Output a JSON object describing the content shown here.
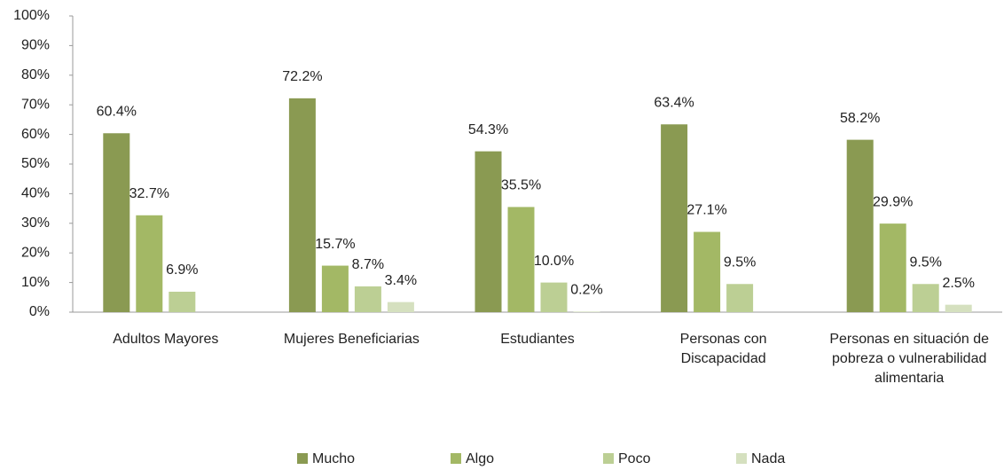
{
  "chart_data": {
    "type": "bar",
    "categories": [
      "Adultos Mayores",
      "Mujeres Beneficiarias",
      "Estudiantes",
      "Personas con\nDiscapacidad",
      "Personas en situación de\npobreza o vulnerabilidad\nalimentaria"
    ],
    "series": [
      {
        "name": "Mucho",
        "color": "#8a9a52",
        "values": [
          60.4,
          72.2,
          54.3,
          63.4,
          58.2
        ],
        "value_labels": [
          "60.4%",
          "72.2%",
          "54.3%",
          "63.4%",
          "58.2%"
        ]
      },
      {
        "name": "Algo",
        "color": "#a3b865",
        "values": [
          32.7,
          15.7,
          35.5,
          27.1,
          29.9
        ],
        "value_labels": [
          "32.7%",
          "15.7%",
          "35.5%",
          "27.1%",
          "29.9%"
        ]
      },
      {
        "name": "Poco",
        "color": "#bccf94",
        "values": [
          6.9,
          8.7,
          10.0,
          9.5,
          9.5
        ],
        "value_labels": [
          "6.9%",
          "8.7%",
          "10.0%",
          "9.5%",
          "9.5%"
        ]
      },
      {
        "name": "Nada",
        "color": "#d5e0bf",
        "values": [
          null,
          3.4,
          0.2,
          null,
          2.5
        ],
        "value_labels": [
          null,
          "3.4%",
          "0.2%",
          null,
          "2.5%"
        ]
      }
    ],
    "ylim": [
      0,
      100
    ],
    "yticks": [
      {
        "value": 0,
        "label": "0%"
      },
      {
        "value": 10,
        "label": "10%"
      },
      {
        "value": 20,
        "label": "20%"
      },
      {
        "value": 30,
        "label": "30%"
      },
      {
        "value": 40,
        "label": "40%"
      },
      {
        "value": 50,
        "label": "50%"
      },
      {
        "value": 60,
        "label": "60%"
      },
      {
        "value": 70,
        "label": "70%"
      },
      {
        "value": 80,
        "label": "80%"
      },
      {
        "value": 90,
        "label": "90%"
      },
      {
        "value": 100,
        "label": "100%"
      }
    ],
    "grid": false,
    "legend": "bottom"
  }
}
